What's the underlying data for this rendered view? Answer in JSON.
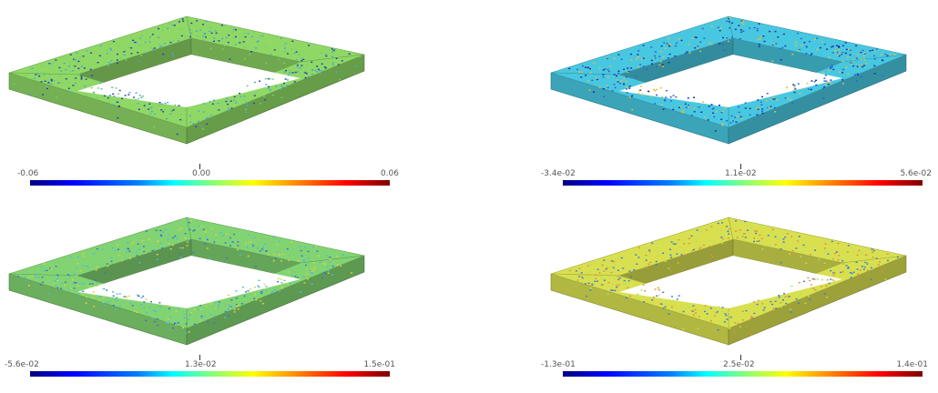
{
  "panels": [
    {
      "id": "top-left",
      "colormap": "jet",
      "base_color": "#8fd866",
      "speckle_colors": [
        "#2a3fa8",
        "#4aa8d8",
        "#6fd070"
      ],
      "colorbar_labels": {
        "min": "-0.06",
        "mid": "0.00",
        "max": "0.06"
      }
    },
    {
      "id": "top-right",
      "colormap": "jet",
      "base_color": "#48c8e0",
      "speckle_colors": [
        "#1a2fa0",
        "#e0c040",
        "#2f5fd0"
      ],
      "colorbar_labels": {
        "min": "-3.4e-02",
        "mid": "1.1e-02",
        "max": "5.6e-02"
      }
    },
    {
      "id": "bottom-left",
      "colormap": "jet",
      "base_color": "#82d472",
      "speckle_colors": [
        "#3a70d0",
        "#e0d040",
        "#50b8e0"
      ],
      "colorbar_labels": {
        "min": "-5.6e-02",
        "mid": "1.3e-02",
        "max": "1.5e-01"
      }
    },
    {
      "id": "bottom-right",
      "colormap": "jet",
      "base_color": "#d8e050",
      "speckle_colors": [
        "#3a7ad8",
        "#e09040",
        "#b8e060"
      ],
      "colorbar_labels": {
        "min": "-1.3e-01",
        "mid": "2.5e-02",
        "max": "1.4e-01"
      }
    }
  ]
}
